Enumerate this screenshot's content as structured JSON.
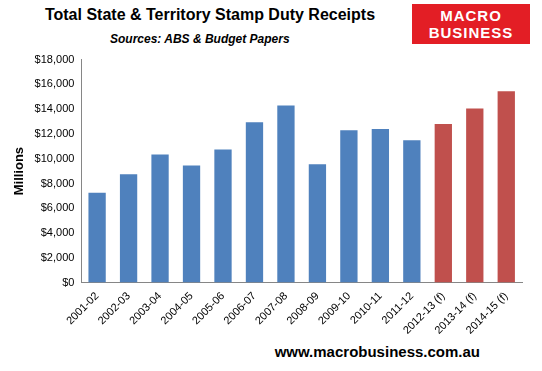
{
  "chart_data": {
    "type": "bar",
    "title": "Total State & Territory Stamp Duty Receipts",
    "subtitle": "Sources: ABS & Budget Papers",
    "logo": "MACRO BUSINESS",
    "footer": "www.macrobusiness.com.au",
    "y_label": "Millions",
    "categories": [
      "2001-02",
      "2002-03",
      "2003-04",
      "2004-05",
      "2005-06",
      "2006-07",
      "2007-08",
      "2008-09",
      "2009-10",
      "2010-11",
      "2011-12",
      "2012-13 (f)",
      "2013-14 (f)",
      "2014-15 (f)"
    ],
    "values": [
      7250,
      8750,
      10350,
      9450,
      10750,
      12950,
      14300,
      9550,
      12300,
      12400,
      11500,
      12800,
      14050,
      15450
    ],
    "colors": [
      "#4f81bd",
      "#4f81bd",
      "#4f81bd",
      "#4f81bd",
      "#4f81bd",
      "#4f81bd",
      "#4f81bd",
      "#4f81bd",
      "#4f81bd",
      "#4f81bd",
      "#4f81bd",
      "#c0504d",
      "#c0504d",
      "#c0504d"
    ],
    "ylim": [
      0,
      18000
    ],
    "yticks": [
      {
        "value": 0,
        "label": "$0"
      },
      {
        "value": 2000,
        "label": "$2,000"
      },
      {
        "value": 4000,
        "label": "$4,000"
      },
      {
        "value": 6000,
        "label": "$6,000"
      },
      {
        "value": 8000,
        "label": "$8,000"
      },
      {
        "value": 10000,
        "label": "$10,000"
      },
      {
        "value": 12000,
        "label": "$12,000"
      },
      {
        "value": 14000,
        "label": "$14,000"
      },
      {
        "value": 16000,
        "label": "$16,000"
      },
      {
        "value": 18000,
        "label": "$18,000"
      }
    ],
    "grid": false
  }
}
